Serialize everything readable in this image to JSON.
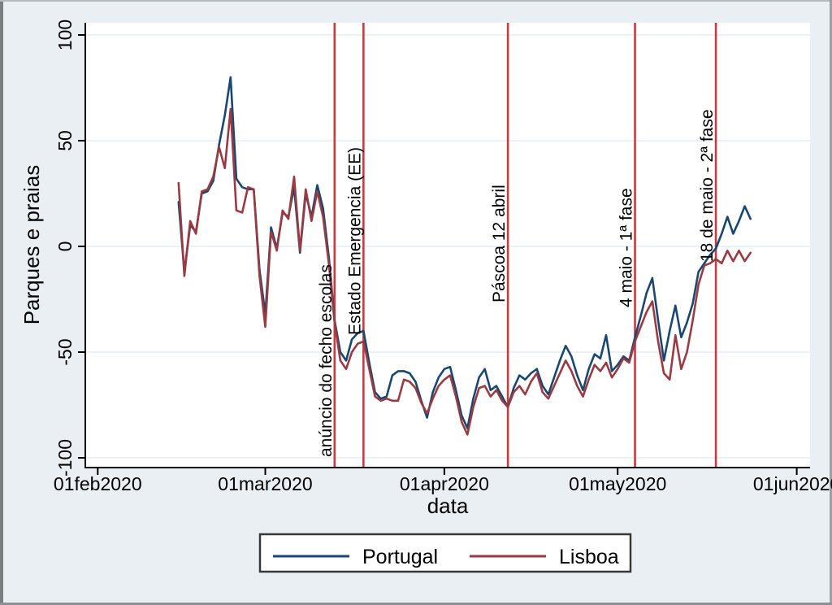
{
  "chart_data": {
    "type": "line",
    "title": "",
    "ylabel": "Parques e praias",
    "xlabel": "data",
    "ylim": [
      -100,
      100
    ],
    "yticks": [
      100,
      50,
      0,
      -50,
      -100
    ],
    "xticks": [
      {
        "label": "01feb2020",
        "day": 0
      },
      {
        "label": "01mar2020",
        "day": 29
      },
      {
        "label": "01apr2020",
        "day": 60
      },
      {
        "label": "01may2020",
        "day": 90
      },
      {
        "label": "01jun2020",
        "day": 121
      }
    ],
    "x_unit": "days since 01feb2020",
    "grid": true,
    "legend_position": "bottom",
    "series_start_day": 14,
    "series": [
      {
        "name": "Portugal",
        "color": "#1a476f",
        "values": [
          21,
          -12,
          10,
          7,
          25,
          26,
          31,
          48,
          62,
          80,
          32,
          28,
          27,
          27,
          -11,
          -32,
          9,
          -1,
          16,
          14,
          28,
          -3,
          25,
          14,
          29,
          18,
          -5,
          -35,
          -50,
          -54,
          -44,
          -41,
          -40,
          -55,
          -69,
          -72,
          -71,
          -61,
          -59,
          -59,
          -60,
          -64,
          -73,
          -81,
          -69,
          -62,
          -58,
          -57,
          -68,
          -80,
          -86,
          -72,
          -62,
          -58,
          -68,
          -66,
          -71,
          -76,
          -67,
          -61,
          -63,
          -60,
          -58,
          -66,
          -70,
          -62,
          -54,
          -47,
          -52,
          -61,
          -68,
          -58,
          -51,
          -53,
          -42,
          -59,
          -56,
          -52,
          -54,
          -43,
          -33,
          -22,
          -15,
          -35,
          -54,
          -40,
          -28,
          -43,
          -36,
          -27,
          -12,
          -8,
          -4,
          -1,
          6,
          14,
          6,
          12,
          19,
          13
        ]
      },
      {
        "name": "Lisboa",
        "color": "#9a3a42",
        "values": [
          30,
          -14,
          12,
          6,
          26,
          27,
          33,
          47,
          37,
          65,
          17,
          16,
          28,
          27,
          -14,
          -38,
          7,
          -2,
          17,
          13,
          33,
          -2,
          27,
          12,
          26,
          14,
          -8,
          -36,
          -54,
          -58,
          -50,
          -46,
          -45,
          -58,
          -71,
          -73,
          -72,
          -73,
          -73,
          -63,
          -64,
          -67,
          -74,
          -79,
          -72,
          -66,
          -63,
          -61,
          -71,
          -83,
          -89,
          -76,
          -67,
          -66,
          -71,
          -68,
          -73,
          -76,
          -69,
          -66,
          -70,
          -64,
          -60,
          -69,
          -72,
          -66,
          -60,
          -54,
          -59,
          -66,
          -71,
          -63,
          -56,
          -59,
          -55,
          -62,
          -58,
          -53,
          -55,
          -45,
          -38,
          -31,
          -26,
          -45,
          -60,
          -63,
          -42,
          -58,
          -50,
          -35,
          -18,
          -9,
          -8,
          -6,
          -8,
          -2,
          -7,
          -2,
          -7,
          -3
        ]
      }
    ],
    "event_lines": [
      {
        "label": "anúncio do fecho escolas",
        "day": 41
      },
      {
        "label": "Estado Emergencia (EE)",
        "day": 46
      },
      {
        "label": "Páscoa 12 abril",
        "day": 71
      },
      {
        "label": "4 maio - 1ª fase",
        "day": 93
      },
      {
        "label": "18 de maio - 2ª fase",
        "day": 107
      }
    ],
    "event_line_color": "#c73b42"
  },
  "colors": {
    "background": "#e9eff2",
    "plot_background": "#ffffff",
    "gridline": "#e3eef4",
    "axis": "#000000",
    "legend_border": "#383838"
  }
}
